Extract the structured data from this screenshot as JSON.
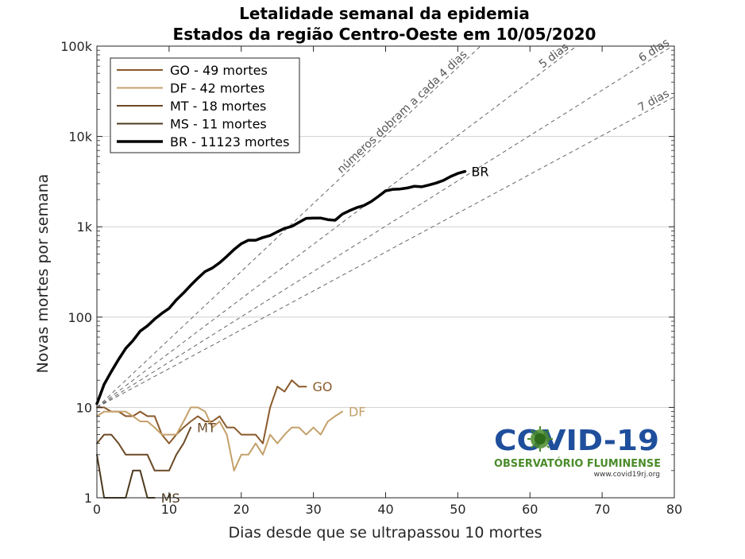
{
  "chart_data": {
    "type": "line",
    "title": [
      "Letalidade semanal da epidemia",
      "Estados da região Centro-Oeste em 10/05/2020"
    ],
    "xlabel": "Dias desde que se ultrapassou 10 mortes",
    "ylabel": "Novas mortes por semana",
    "xlim": [
      0,
      80
    ],
    "ylim": [
      1,
      100000
    ],
    "yscale": "log",
    "xticks": [
      0,
      10,
      20,
      30,
      40,
      50,
      60,
      70,
      80
    ],
    "yticks": [
      1,
      10,
      100,
      1000,
      10000,
      100000
    ],
    "ytick_labels": [
      "1",
      "10",
      "100",
      "1k",
      "10k",
      "100k"
    ],
    "grid": "horizontal",
    "legend_position": "top-left",
    "series": [
      {
        "name": "GO - 49 mortes",
        "end_label": "GO",
        "color": "#8a5a2b",
        "width": 2,
        "x": [
          0,
          1,
          2,
          3,
          4,
          5,
          6,
          7,
          8,
          9,
          10,
          11,
          12,
          13,
          14,
          15,
          16,
          17,
          18,
          19,
          20,
          21,
          22,
          23,
          24,
          25,
          26,
          27,
          28,
          29
        ],
        "y": [
          10,
          10,
          9,
          9,
          8,
          8,
          9,
          8,
          8,
          5,
          4,
          5,
          6,
          7,
          8,
          7,
          7,
          8,
          6,
          6,
          5,
          5,
          5,
          4,
          10,
          17,
          15,
          20,
          17,
          17
        ]
      },
      {
        "name": "DF - 42 mortes",
        "end_label": "DF",
        "color": "#c4a06a",
        "width": 2,
        "x": [
          0,
          1,
          2,
          3,
          4,
          5,
          6,
          7,
          8,
          9,
          10,
          11,
          12,
          13,
          14,
          15,
          16,
          17,
          18,
          19,
          20,
          21,
          22,
          23,
          24,
          25,
          26,
          27,
          28,
          29,
          30,
          31,
          32,
          33,
          34
        ],
        "y": [
          8,
          9,
          9,
          9,
          9,
          8,
          7,
          7,
          6,
          5,
          5,
          5,
          7,
          10,
          10,
          9,
          6,
          7,
          5,
          2,
          3,
          3,
          4,
          3,
          5,
          4,
          5,
          6,
          6,
          5,
          6,
          5,
          7,
          8,
          9
        ]
      },
      {
        "name": "MT - 18 mortes",
        "end_label": "MT",
        "color": "#6b4a26",
        "width": 2,
        "x": [
          0,
          1,
          2,
          3,
          4,
          5,
          6,
          7,
          8,
          9,
          10,
          11,
          12,
          13
        ],
        "y": [
          4,
          5,
          5,
          4,
          3,
          3,
          3,
          3,
          2,
          2,
          2,
          3,
          4,
          6
        ]
      },
      {
        "name": "MS - 11 mortes",
        "end_label": "MS",
        "color": "#4d3a1f",
        "width": 2,
        "x": [
          0,
          1,
          2,
          3,
          4,
          5,
          6,
          7,
          8
        ],
        "y": [
          3,
          1,
          1,
          1,
          1,
          2,
          2,
          1,
          1
        ]
      },
      {
        "name": "BR - 11123 mortes",
        "end_label": "BR",
        "color": "#000000",
        "width": 3.5,
        "x": [
          0,
          1,
          2,
          3,
          4,
          5,
          6,
          7,
          8,
          9,
          10,
          11,
          12,
          13,
          14,
          15,
          16,
          17,
          18,
          19,
          20,
          21,
          22,
          23,
          24,
          25,
          26,
          27,
          28,
          29,
          30,
          31,
          32,
          33,
          34,
          35,
          36,
          37,
          38,
          39,
          40,
          41,
          42,
          43,
          44,
          45,
          46,
          47,
          48,
          49,
          50,
          51
        ],
        "y": [
          11,
          18,
          25,
          34,
          45,
          55,
          70,
          80,
          95,
          110,
          125,
          155,
          185,
          225,
          270,
          320,
          350,
          400,
          470,
          560,
          650,
          710,
          710,
          760,
          800,
          880,
          960,
          1010,
          1120,
          1240,
          1250,
          1250,
          1200,
          1180,
          1380,
          1510,
          1630,
          1720,
          1900,
          2170,
          2500,
          2600,
          2620,
          2690,
          2810,
          2770,
          2900,
          3050,
          3260,
          3600,
          3900,
          4100
        ]
      }
    ],
    "reference_lines": [
      {
        "label": "números dobram a cada 4 dias",
        "doubling_days": 4
      },
      {
        "label": "5 dias",
        "doubling_days": 5
      },
      {
        "label": "6 dias",
        "doubling_days": 6
      },
      {
        "label": "7 dias",
        "doubling_days": 7
      }
    ]
  },
  "logo": {
    "title": "COVID-19",
    "subtitle": "OBSERVATÓRIO FLUMINENSE",
    "url": "www.covid19rj.org",
    "colors": {
      "blue": "#1f4f9c",
      "green": "#4a8c2a"
    }
  }
}
